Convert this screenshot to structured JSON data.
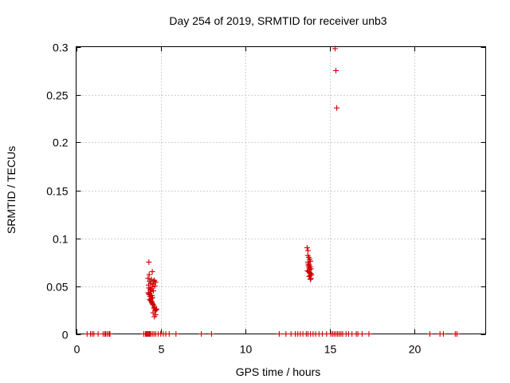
{
  "chart_data": {
    "type": "scatter",
    "title": "Day 254 of 2019, SRMTID for receiver unb3",
    "xlabel": "GPS time / hours",
    "ylabel": "SRMTID / TECUs",
    "xlim": [
      0,
      24.2
    ],
    "ylim": [
      0,
      0.3
    ],
    "xticks": [
      0,
      5,
      10,
      15,
      20
    ],
    "yticks": [
      0,
      0.05,
      0.1,
      0.15,
      0.2,
      0.25,
      0.3
    ],
    "xtick_labels": [
      "0",
      "5",
      "10",
      "15",
      "20"
    ],
    "ytick_labels": [
      "0",
      "0.05",
      "0.1",
      "0.15",
      "0.2",
      "0.25",
      "0.3"
    ],
    "grid": true,
    "marker": "+",
    "series_color": "#d00000",
    "series": [
      {
        "name": "SRMTID",
        "x": [
          0.65,
          0.85,
          0.95,
          1.05,
          1.3,
          1.6,
          1.7,
          1.75,
          1.85,
          1.95,
          2.0,
          4.0,
          4.1,
          4.15,
          4.2,
          4.25,
          4.3,
          4.35,
          4.4,
          4.5,
          4.6,
          4.7,
          4.85,
          5.0,
          5.15,
          5.3,
          5.5,
          5.9,
          7.4,
          8.0,
          12.0,
          12.4,
          12.7,
          12.95,
          13.1,
          13.25,
          13.4,
          13.6,
          13.7,
          13.85,
          14.0,
          14.15,
          14.35,
          14.55,
          14.8,
          15.05,
          15.15,
          15.25,
          15.35,
          15.45,
          15.55,
          15.65,
          15.75,
          15.95,
          16.1,
          16.3,
          16.55,
          16.65,
          16.9,
          17.3,
          20.9,
          21.5,
          21.7,
          22.4,
          22.5,
          4.3,
          4.32,
          4.25,
          4.35,
          4.4,
          4.28,
          4.45,
          4.5,
          4.3,
          4.38,
          4.42,
          4.55,
          4.6,
          4.62,
          4.27,
          4.33,
          4.48,
          4.52,
          4.57,
          4.65,
          4.7,
          4.35,
          4.4,
          4.45,
          4.5,
          4.58,
          4.63,
          4.68,
          4.72,
          4.3,
          4.37,
          4.43,
          4.47,
          4.53,
          4.6,
          4.66,
          4.41,
          4.5,
          4.55,
          4.7,
          4.62,
          4.75,
          13.65,
          13.7,
          13.75,
          13.8,
          13.85,
          13.72,
          13.78,
          13.83,
          13.88,
          13.67,
          13.74,
          13.8,
          13.86,
          13.9,
          13.7,
          13.77,
          13.84,
          13.69,
          13.76,
          13.82,
          13.73,
          13.79,
          13.87,
          15.3,
          15.35,
          15.4
        ],
        "y": [
          0,
          0,
          0,
          0,
          0,
          0,
          0,
          0,
          0,
          0,
          0,
          0,
          0,
          0,
          0,
          0,
          0,
          0,
          0,
          0,
          0,
          0,
          0,
          0,
          0,
          0,
          0,
          0,
          0,
          0,
          0,
          0,
          0,
          0,
          0,
          0,
          0,
          0,
          0,
          0,
          0,
          0,
          0,
          0,
          0,
          0,
          0,
          0,
          0,
          0,
          0,
          0,
          0,
          0,
          0,
          0,
          0,
          0,
          0,
          0,
          0,
          0,
          0,
          0,
          0,
          0.075,
          0.062,
          0.058,
          0.055,
          0.053,
          0.051,
          0.057,
          0.065,
          0.048,
          0.046,
          0.044,
          0.052,
          0.055,
          0.056,
          0.043,
          0.041,
          0.04,
          0.038,
          0.045,
          0.05,
          0.054,
          0.036,
          0.035,
          0.034,
          0.032,
          0.03,
          0.028,
          0.026,
          0.025,
          0.042,
          0.039,
          0.037,
          0.033,
          0.031,
          0.027,
          0.024,
          0.047,
          0.049,
          0.022,
          0.02,
          0.018,
          0.026,
          0.09,
          0.087,
          0.08,
          0.078,
          0.076,
          0.073,
          0.072,
          0.07,
          0.068,
          0.066,
          0.065,
          0.064,
          0.063,
          0.062,
          0.075,
          0.06,
          0.057,
          0.082,
          0.069,
          0.061,
          0.071,
          0.067,
          0.058,
          0.298,
          0.275,
          0.236
        ]
      }
    ]
  }
}
